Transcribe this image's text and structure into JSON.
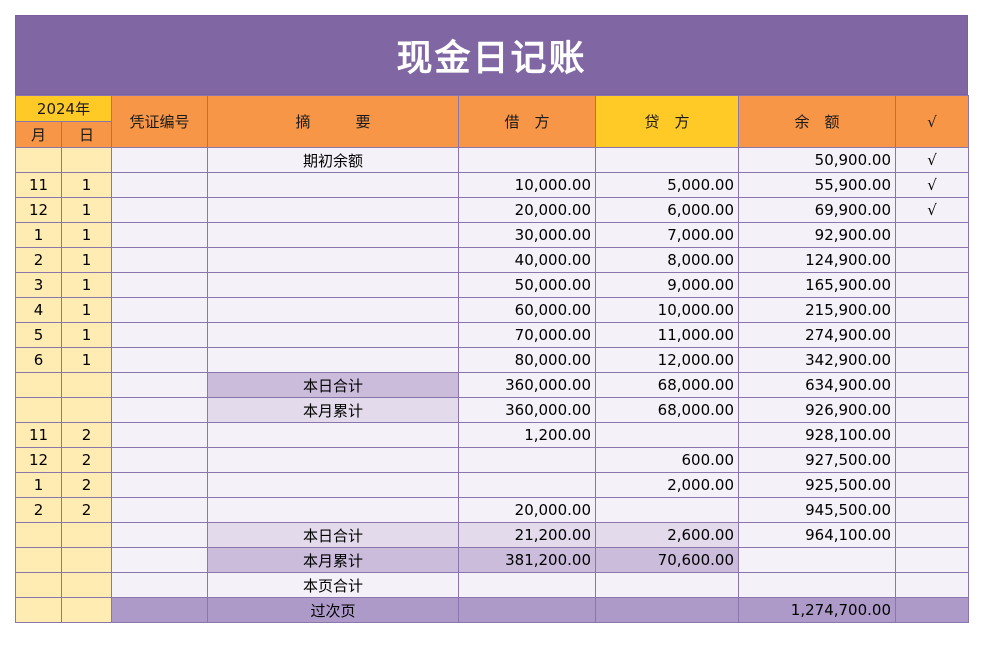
{
  "title": "现金日记账",
  "header": {
    "year": "2024年",
    "month": "月",
    "day": "日",
    "voucher": "凭证编号",
    "summary": "摘　　　要",
    "debit": "借　方",
    "credit": "贷　方",
    "balance": "余　额",
    "check": "√"
  },
  "colors": {
    "title_bg": "#8066A3",
    "header_orange": "#F79646",
    "header_yellow": "#FFC926",
    "date_bg": "#FFECB3",
    "row_bg": "#F5F1F8",
    "sum_dark": "#CBBCDB",
    "sum_light": "#E3DAEC",
    "next_page": "#AE9AC9"
  },
  "rows": [
    {
      "m": "",
      "d": "",
      "v": "",
      "s": "期初余额",
      "debit": "",
      "credit": "",
      "bal": "50,900.00",
      "chk": "√",
      "type": "plain"
    },
    {
      "m": "11",
      "d": "1",
      "v": "",
      "s": "",
      "debit": "10,000.00",
      "credit": "5,000.00",
      "bal": "55,900.00",
      "chk": "√",
      "type": "plain"
    },
    {
      "m": "12",
      "d": "1",
      "v": "",
      "s": "",
      "debit": "20,000.00",
      "credit": "6,000.00",
      "bal": "69,900.00",
      "chk": "√",
      "type": "plain"
    },
    {
      "m": "1",
      "d": "1",
      "v": "",
      "s": "",
      "debit": "30,000.00",
      "credit": "7,000.00",
      "bal": "92,900.00",
      "chk": "",
      "type": "plain"
    },
    {
      "m": "2",
      "d": "1",
      "v": "",
      "s": "",
      "debit": "40,000.00",
      "credit": "8,000.00",
      "bal": "124,900.00",
      "chk": "",
      "type": "plain"
    },
    {
      "m": "3",
      "d": "1",
      "v": "",
      "s": "",
      "debit": "50,000.00",
      "credit": "9,000.00",
      "bal": "165,900.00",
      "chk": "",
      "type": "plain"
    },
    {
      "m": "4",
      "d": "1",
      "v": "",
      "s": "",
      "debit": "60,000.00",
      "credit": "10,000.00",
      "bal": "215,900.00",
      "chk": "",
      "type": "plain"
    },
    {
      "m": "5",
      "d": "1",
      "v": "",
      "s": "",
      "debit": "70,000.00",
      "credit": "11,000.00",
      "bal": "274,900.00",
      "chk": "",
      "type": "plain"
    },
    {
      "m": "6",
      "d": "1",
      "v": "",
      "s": "",
      "debit": "80,000.00",
      "credit": "12,000.00",
      "bal": "342,900.00",
      "chk": "",
      "type": "plain"
    },
    {
      "m": "",
      "d": "",
      "v": "",
      "s": "本日合计",
      "debit": "360,000.00",
      "credit": "68,000.00",
      "bal": "634,900.00",
      "chk": "",
      "type": "day1"
    },
    {
      "m": "",
      "d": "",
      "v": "",
      "s": "本月累计",
      "debit": "360,000.00",
      "credit": "68,000.00",
      "bal": "926,900.00",
      "chk": "",
      "type": "month1"
    },
    {
      "m": "11",
      "d": "2",
      "v": "",
      "s": "",
      "debit": "1,200.00",
      "credit": "",
      "bal": "928,100.00",
      "chk": "",
      "type": "plain"
    },
    {
      "m": "12",
      "d": "2",
      "v": "",
      "s": "",
      "debit": "",
      "credit": "600.00",
      "bal": "927,500.00",
      "chk": "",
      "type": "plain"
    },
    {
      "m": "1",
      "d": "2",
      "v": "",
      "s": "",
      "debit": "",
      "credit": "2,000.00",
      "bal": "925,500.00",
      "chk": "",
      "type": "plain"
    },
    {
      "m": "2",
      "d": "2",
      "v": "",
      "s": "",
      "debit": "20,000.00",
      "credit": "",
      "bal": "945,500.00",
      "chk": "",
      "type": "plain"
    },
    {
      "m": "",
      "d": "",
      "v": "",
      "s": "本日合计",
      "debit": "21,200.00",
      "credit": "2,600.00",
      "bal": "964,100.00",
      "chk": "",
      "type": "day2"
    },
    {
      "m": "",
      "d": "",
      "v": "",
      "s": "本月累计",
      "debit": "381,200.00",
      "credit": "70,600.00",
      "bal": "",
      "chk": "",
      "type": "month2"
    },
    {
      "m": "",
      "d": "",
      "v": "",
      "s": "本页合计",
      "debit": "",
      "credit": "",
      "bal": "",
      "chk": "",
      "type": "page"
    },
    {
      "m": "",
      "d": "",
      "v": "",
      "s": "过次页",
      "debit": "",
      "credit": "",
      "bal": "1,274,700.00",
      "chk": "",
      "type": "next"
    }
  ]
}
